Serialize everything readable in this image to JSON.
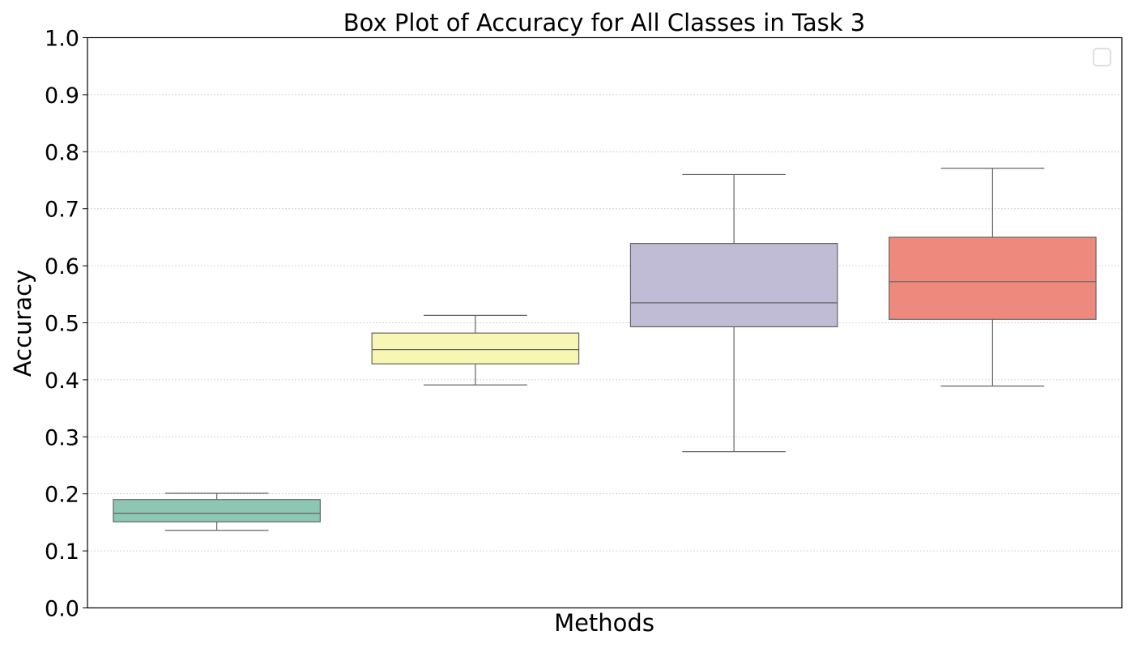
{
  "chart_data": {
    "type": "box",
    "title": "Box Plot of Accuracy for All Classes in Task 3",
    "xlabel": "Methods",
    "ylabel": "Accuracy",
    "ylim": [
      0.0,
      1.0
    ],
    "yticks": [
      "0.0",
      "0.1",
      "0.2",
      "0.3",
      "0.4",
      "0.5",
      "0.6",
      "0.7",
      "0.8",
      "0.9",
      "1.0"
    ],
    "grid": "horizontal dotted",
    "legend": "top-right (empty)",
    "boxes": [
      {
        "whisker_low": 0.136,
        "q1": 0.151,
        "median": 0.166,
        "q3": 0.19,
        "whisker_high": 0.201,
        "color": "#8dc7b4"
      },
      {
        "whisker_low": 0.391,
        "q1": 0.428,
        "median": 0.453,
        "q3": 0.482,
        "whisker_high": 0.513,
        "color": "#f7f6b3"
      },
      {
        "whisker_low": 0.274,
        "q1": 0.493,
        "median": 0.535,
        "q3": 0.639,
        "whisker_high": 0.76,
        "color": "#c0bcd6"
      },
      {
        "whisker_low": 0.389,
        "q1": 0.506,
        "median": 0.572,
        "q3": 0.65,
        "whisker_high": 0.771,
        "color": "#ee8a7d"
      }
    ]
  }
}
